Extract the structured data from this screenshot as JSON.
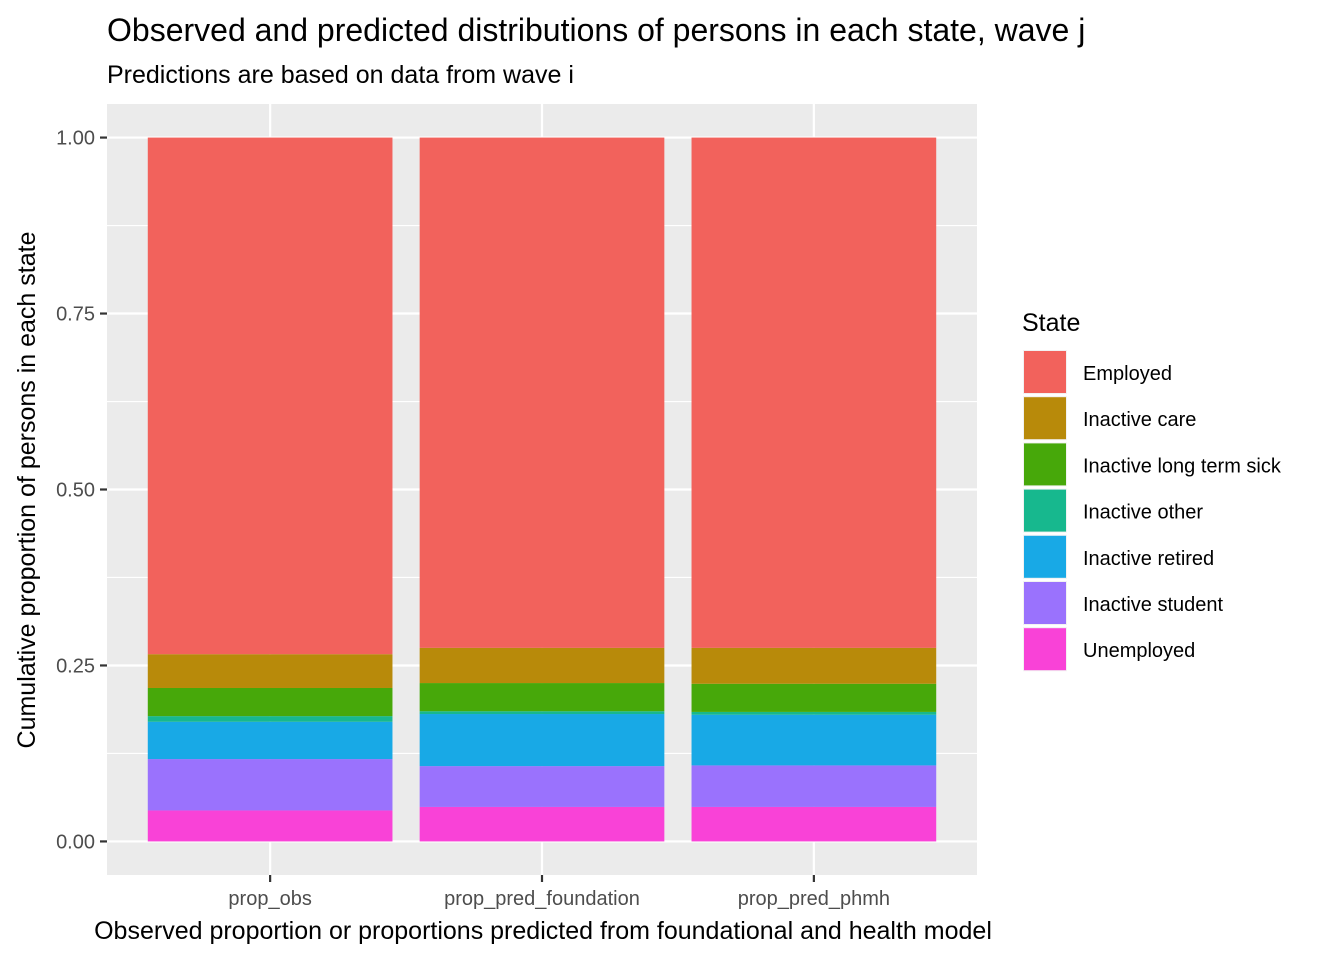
{
  "chart_data": {
    "type": "bar",
    "stacked": true,
    "title": "Observed and predicted distributions of persons in each state, wave j",
    "subtitle": "Predictions are based on data from wave i",
    "xlabel": "Observed proportion or proportions predicted from foundational and health model",
    "ylabel": "Cumulative proportion of persons in each state",
    "categories": [
      "prop_obs",
      "prop_pred_foundation",
      "prop_pred_phmh"
    ],
    "ylim": [
      -0.0477,
      1.0477
    ],
    "yticks": [
      0.0,
      0.25,
      0.5,
      0.75,
      1.0
    ],
    "ytick_labels": [
      "0.00",
      "0.25",
      "0.50",
      "0.75",
      "1.00"
    ],
    "grid": true,
    "legend": {
      "title": "State",
      "position": "right"
    },
    "series": [
      {
        "name": "Unemployed",
        "color": "#F942D7",
        "values": [
          0.044,
          0.049,
          0.049
        ]
      },
      {
        "name": "Inactive student",
        "color": "#9A72FD",
        "values": [
          0.073,
          0.058,
          0.059
        ]
      },
      {
        "name": "Inactive retired",
        "color": "#18A9E6",
        "values": [
          0.053,
          0.074,
          0.072
        ]
      },
      {
        "name": "Inactive other",
        "color": "#17B88E",
        "values": [
          0.008,
          0.004,
          0.004
        ]
      },
      {
        "name": "Inactive long term sick",
        "color": "#47A80A",
        "values": [
          0.04,
          0.04,
          0.04
        ]
      },
      {
        "name": "Inactive care",
        "color": "#B88A0A",
        "values": [
          0.048,
          0.05,
          0.051
        ]
      },
      {
        "name": "Employed",
        "color": "#F2625C",
        "values": [
          0.734,
          0.725,
          0.725
        ]
      }
    ],
    "legend_order": [
      "Employed",
      "Inactive care",
      "Inactive long term sick",
      "Inactive other",
      "Inactive retired",
      "Inactive student",
      "Unemployed"
    ]
  }
}
